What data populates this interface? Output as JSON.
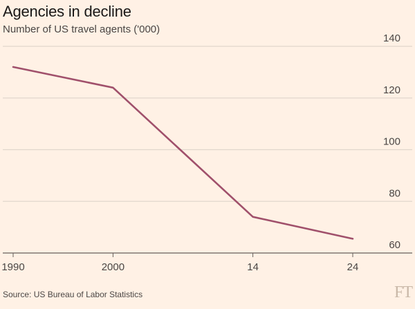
{
  "title": "Agencies in decline",
  "subtitle": "Number of US travel agents ('000)",
  "source": "Source: US Bureau of Labor Statistics",
  "logo": "FT",
  "colors": {
    "background": "#fff1e5",
    "gridline": "#e0d6cc",
    "axis": "#66605c",
    "line": "#a0506b"
  },
  "chart_data": {
    "type": "line",
    "title": "Agencies in decline",
    "subtitle": "Number of US travel agents ('000)",
    "xlabel": "",
    "ylabel": "",
    "x": [
      1990,
      2000,
      2014,
      2024
    ],
    "x_tick_labels": [
      "1990",
      "2000",
      "14",
      "24"
    ],
    "y_ticks": [
      60,
      80,
      100,
      120,
      140
    ],
    "ylim": [
      60,
      140
    ],
    "y_axis_side": "right",
    "grid": true,
    "series": [
      {
        "values": [
          132,
          124,
          74,
          65.5
        ]
      }
    ]
  }
}
